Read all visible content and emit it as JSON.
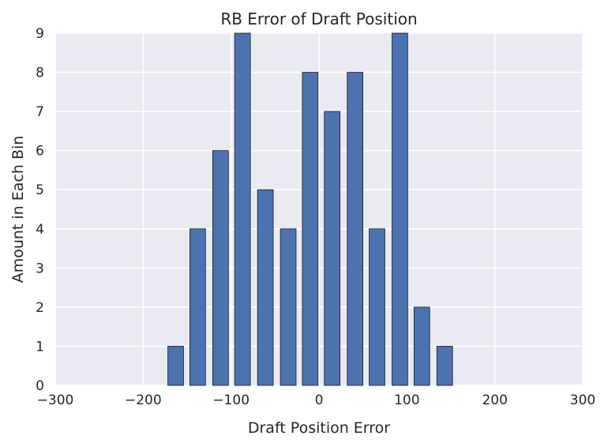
{
  "chart_data": {
    "type": "bar",
    "title": "RB Error of Draft Position",
    "xlabel": "Draft Position Error",
    "ylabel": "Amount in Each Bin",
    "xlim": [
      -300,
      300
    ],
    "ylim": [
      0,
      9
    ],
    "xticks": [
      "−300",
      "−200",
      "−100",
      "0",
      "100",
      "200",
      "300"
    ],
    "yticks": [
      "0",
      "1",
      "2",
      "3",
      "4",
      "5",
      "6",
      "7",
      "8",
      "9"
    ],
    "bins": [
      -163,
      -138,
      -112,
      -87,
      -61,
      -35,
      -10,
      15,
      41,
      66,
      92,
      117,
      143
    ],
    "values": [
      1,
      4,
      6,
      9,
      5,
      4,
      8,
      7,
      8,
      4,
      9,
      2,
      1
    ],
    "grid": true,
    "colors": {
      "bar": "#4c72b0",
      "background": "#eaeaf2",
      "grid": "#ffffff"
    }
  }
}
